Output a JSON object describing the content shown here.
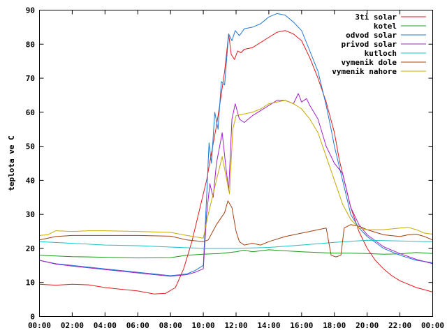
{
  "chart_data": {
    "type": "line",
    "title": "",
    "xlabel": "",
    "ylabel": "teplota ve C",
    "xlim": [
      0,
      24
    ],
    "ylim": [
      0,
      90
    ],
    "x_ticks": [
      0,
      2,
      4,
      6,
      8,
      10,
      12,
      14,
      16,
      18,
      20,
      22,
      24
    ],
    "x_tick_labels": [
      "00:00",
      "02:00",
      "04:00",
      "06:00",
      "08:00",
      "10:00",
      "12:00",
      "14:00",
      "16:00",
      "18:00",
      "20:00",
      "22:00",
      "00:00"
    ],
    "y_ticks": [
      0,
      10,
      20,
      30,
      40,
      50,
      60,
      70,
      80,
      90
    ],
    "grid": false,
    "legend_position": "top-right",
    "series": [
      {
        "name": "3ti solar",
        "color": "#e31a1c",
        "points": [
          [
            0,
            9.5
          ],
          [
            1,
            9.2
          ],
          [
            2,
            9.5
          ],
          [
            3,
            9.3
          ],
          [
            4,
            8.5
          ],
          [
            5,
            8
          ],
          [
            6,
            7.5
          ],
          [
            7,
            6.6
          ],
          [
            7.7,
            6.8
          ],
          [
            8.3,
            8.5
          ],
          [
            8.8,
            14
          ],
          [
            9.3,
            22
          ],
          [
            9.8,
            32
          ],
          [
            10.2,
            40
          ],
          [
            10.5,
            48
          ],
          [
            10.8,
            56
          ],
          [
            11.0,
            62
          ],
          [
            11.3,
            72
          ],
          [
            11.55,
            83
          ],
          [
            11.7,
            77
          ],
          [
            11.9,
            75.5
          ],
          [
            12.1,
            78
          ],
          [
            12.3,
            77.5
          ],
          [
            12.5,
            78.5
          ],
          [
            13,
            79
          ],
          [
            13.5,
            80.5
          ],
          [
            14,
            82
          ],
          [
            14.5,
            83.5
          ],
          [
            15,
            84
          ],
          [
            15.5,
            83
          ],
          [
            16,
            81
          ],
          [
            16.5,
            76
          ],
          [
            17,
            70
          ],
          [
            17.5,
            63
          ],
          [
            18,
            54
          ],
          [
            18.3,
            46
          ],
          [
            18.7,
            38
          ],
          [
            19,
            32
          ],
          [
            19.5,
            25
          ],
          [
            20,
            20
          ],
          [
            20.5,
            16.5
          ],
          [
            21,
            14
          ],
          [
            21.5,
            12
          ],
          [
            22,
            10.5
          ],
          [
            23,
            8.5
          ],
          [
            24,
            7.2
          ]
        ]
      },
      {
        "name": "kotel",
        "color": "#1a9a1a",
        "points": [
          [
            0,
            18
          ],
          [
            2,
            17.6
          ],
          [
            4,
            17.4
          ],
          [
            6,
            17.2
          ],
          [
            8,
            17.3
          ],
          [
            9,
            18
          ],
          [
            10,
            18.3
          ],
          [
            11,
            18.5
          ],
          [
            12,
            19
          ],
          [
            12.5,
            19.5
          ],
          [
            13,
            19
          ],
          [
            14,
            19.6
          ],
          [
            15,
            19.3
          ],
          [
            16,
            19
          ],
          [
            17,
            18.8
          ],
          [
            18,
            18.6
          ],
          [
            19,
            18.6
          ],
          [
            20,
            18.5
          ],
          [
            21,
            18.3
          ],
          [
            22,
            18.4
          ],
          [
            23,
            18.8
          ],
          [
            24,
            18.5
          ]
        ]
      },
      {
        "name": "odvod solar",
        "color": "#1f78d4",
        "points": [
          [
            0,
            16.5
          ],
          [
            1,
            15.5
          ],
          [
            2,
            15
          ],
          [
            3,
            14.5
          ],
          [
            4,
            14
          ],
          [
            5,
            13.5
          ],
          [
            6,
            13
          ],
          [
            7,
            12.5
          ],
          [
            8,
            12
          ],
          [
            9,
            12.5
          ],
          [
            9.5,
            13.5
          ],
          [
            10,
            15
          ],
          [
            10.2,
            35
          ],
          [
            10.35,
            51
          ],
          [
            10.5,
            45
          ],
          [
            10.7,
            60
          ],
          [
            10.9,
            55
          ],
          [
            11.1,
            69
          ],
          [
            11.3,
            68
          ],
          [
            11.55,
            83
          ],
          [
            11.75,
            81
          ],
          [
            11.95,
            84
          ],
          [
            12.2,
            82.5
          ],
          [
            12.5,
            84.5
          ],
          [
            13,
            85
          ],
          [
            13.5,
            86
          ],
          [
            14,
            88
          ],
          [
            14.5,
            89
          ],
          [
            15,
            88.5
          ],
          [
            15.5,
            86.5
          ],
          [
            16,
            84
          ],
          [
            16.5,
            78
          ],
          [
            17,
            72
          ],
          [
            17.5,
            62
          ],
          [
            17.8,
            55
          ],
          [
            18,
            50
          ],
          [
            18.5,
            40
          ],
          [
            19,
            30
          ],
          [
            19.5,
            26
          ],
          [
            20,
            23.5
          ],
          [
            21,
            20
          ],
          [
            22,
            18
          ],
          [
            23,
            16.5
          ],
          [
            24,
            15.8
          ]
        ]
      },
      {
        "name": "privod solar",
        "color": "#a021c9",
        "points": [
          [
            0,
            16.5
          ],
          [
            1,
            15.4
          ],
          [
            2,
            14.8
          ],
          [
            3,
            14.3
          ],
          [
            4,
            13.8
          ],
          [
            5,
            13.3
          ],
          [
            6,
            12.8
          ],
          [
            7,
            12.3
          ],
          [
            8,
            11.8
          ],
          [
            9,
            12.3
          ],
          [
            9.5,
            13
          ],
          [
            10,
            14
          ],
          [
            10.2,
            30
          ],
          [
            10.4,
            39
          ],
          [
            10.6,
            35
          ],
          [
            10.8,
            45
          ],
          [
            11.0,
            50
          ],
          [
            11.15,
            54
          ],
          [
            11.35,
            45
          ],
          [
            11.55,
            37
          ],
          [
            11.75,
            58
          ],
          [
            11.95,
            62.5
          ],
          [
            12.2,
            58
          ],
          [
            12.5,
            57
          ],
          [
            13,
            59
          ],
          [
            13.5,
            60.5
          ],
          [
            14,
            62
          ],
          [
            14.5,
            63.5
          ],
          [
            15,
            63.5
          ],
          [
            15.5,
            62.5
          ],
          [
            15.8,
            65.5
          ],
          [
            16,
            63
          ],
          [
            16.3,
            64
          ],
          [
            16.5,
            62
          ],
          [
            17,
            58
          ],
          [
            17.5,
            50
          ],
          [
            18,
            45
          ],
          [
            18.5,
            42
          ],
          [
            19,
            32
          ],
          [
            19.5,
            27
          ],
          [
            20,
            24
          ],
          [
            21,
            20.5
          ],
          [
            22,
            18.5
          ],
          [
            23,
            16.8
          ],
          [
            24,
            15.5
          ]
        ]
      },
      {
        "name": "kutloch",
        "color": "#17c4c4",
        "points": [
          [
            0,
            22
          ],
          [
            2,
            21.5
          ],
          [
            4,
            21
          ],
          [
            6,
            20.8
          ],
          [
            8,
            20.4
          ],
          [
            10,
            20
          ],
          [
            12,
            20
          ],
          [
            14,
            20.3
          ],
          [
            16,
            21
          ],
          [
            18,
            21.8
          ],
          [
            20,
            22.4
          ],
          [
            22,
            22.2
          ],
          [
            24,
            22
          ]
        ]
      },
      {
        "name": "vymenik dole",
        "color": "#a0400f",
        "points": [
          [
            0,
            22.5
          ],
          [
            1,
            23.5
          ],
          [
            2,
            23.8
          ],
          [
            4,
            23.8
          ],
          [
            6,
            23.8
          ],
          [
            8,
            23.6
          ],
          [
            9,
            22.5
          ],
          [
            10,
            22
          ],
          [
            10.3,
            22.5
          ],
          [
            10.8,
            27
          ],
          [
            11.3,
            30.5
          ],
          [
            11.5,
            34
          ],
          [
            11.75,
            32
          ],
          [
            12,
            25
          ],
          [
            12.2,
            22
          ],
          [
            12.5,
            21
          ],
          [
            13,
            21.5
          ],
          [
            13.5,
            21
          ],
          [
            14,
            22
          ],
          [
            15,
            23.5
          ],
          [
            16,
            24.5
          ],
          [
            16.5,
            25
          ],
          [
            17,
            25.5
          ],
          [
            17.5,
            26
          ],
          [
            17.8,
            18
          ],
          [
            18.1,
            17.5
          ],
          [
            18.4,
            18
          ],
          [
            18.6,
            26
          ],
          [
            19,
            27
          ],
          [
            19.5,
            26.5
          ],
          [
            20,
            25.5
          ],
          [
            21,
            24
          ],
          [
            22,
            23.5
          ],
          [
            22.5,
            24
          ],
          [
            23,
            24.2
          ],
          [
            23.5,
            23.5
          ],
          [
            24,
            22.5
          ]
        ]
      },
      {
        "name": "vymenik nahore",
        "color": "#c8aa00",
        "points": [
          [
            0,
            23.8
          ],
          [
            0.5,
            24
          ],
          [
            1,
            25.2
          ],
          [
            2,
            25
          ],
          [
            3,
            25.2
          ],
          [
            4,
            25.2
          ],
          [
            6,
            25
          ],
          [
            8,
            24.7
          ],
          [
            9,
            23.8
          ],
          [
            10,
            23
          ],
          [
            10.3,
            30
          ],
          [
            10.6,
            36
          ],
          [
            10.9,
            42
          ],
          [
            11.15,
            47
          ],
          [
            11.35,
            42
          ],
          [
            11.6,
            36
          ],
          [
            11.8,
            55
          ],
          [
            12,
            59
          ],
          [
            12.5,
            59.5
          ],
          [
            13,
            60
          ],
          [
            13.5,
            61
          ],
          [
            14,
            62.5
          ],
          [
            14.5,
            63
          ],
          [
            15,
            63.5
          ],
          [
            15.5,
            62.5
          ],
          [
            16,
            61
          ],
          [
            16.5,
            58
          ],
          [
            17,
            54
          ],
          [
            17.5,
            47
          ],
          [
            18,
            40
          ],
          [
            18.5,
            33
          ],
          [
            19,
            28.5
          ],
          [
            19.5,
            26
          ],
          [
            20,
            25.5
          ],
          [
            21,
            25.5
          ],
          [
            22,
            26
          ],
          [
            22.5,
            26.2
          ],
          [
            23,
            25.5
          ],
          [
            23.5,
            24.5
          ],
          [
            24,
            24.2
          ]
        ]
      }
    ]
  }
}
